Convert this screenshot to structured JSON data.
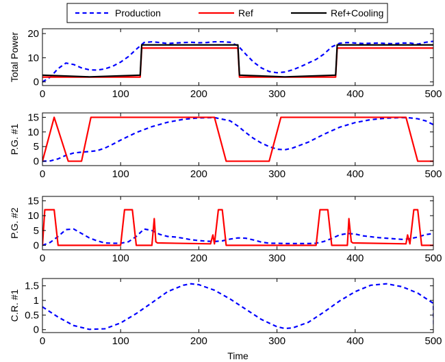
{
  "chart_data": {
    "type": "line",
    "title": "",
    "xlabel": "Time",
    "xlim": [
      0,
      500
    ],
    "xticks": [
      0,
      100,
      200,
      300,
      400,
      500
    ],
    "grid": false,
    "legend": {
      "placement": "top-center",
      "entries": [
        {
          "name": "Production",
          "color": "#0000ff",
          "style": "dashed"
        },
        {
          "name": "Ref",
          "color": "#ff0000",
          "style": "solid"
        },
        {
          "name": "Ref+Cooling",
          "color": "#000000",
          "style": "solid"
        }
      ]
    },
    "subplots": [
      {
        "id": "total-power",
        "ylabel": "Total Power",
        "ylim": [
          -1.5,
          22
        ],
        "yticks": [
          0,
          10,
          20
        ],
        "series": [
          {
            "name": "Production",
            "color": "#0000ff",
            "style": "dashed",
            "x": [
              0,
              10,
              20,
              30,
              40,
              50,
              60,
              70,
              80,
              90,
              100,
              110,
              120,
              130,
              140,
              150,
              160,
              170,
              180,
              190,
              200,
              210,
              220,
              230,
              240,
              250,
              260,
              270,
              280,
              290,
              300,
              310,
              320,
              330,
              340,
              350,
              360,
              370,
              380,
              390,
              400,
              410,
              420,
              430,
              440,
              450,
              460,
              470,
              480,
              490,
              500
            ],
            "y": [
              0,
              2,
              5.5,
              7.8,
              7.2,
              5.8,
              5.0,
              4.9,
              5.4,
              6.5,
              8.2,
              10.5,
              13.5,
              16.3,
              16.6,
              16.3,
              15.9,
              16.1,
              16.3,
              16.4,
              16.2,
              16.3,
              16.6,
              16.6,
              16.4,
              15.0,
              11.5,
              8.2,
              5.8,
              4.3,
              3.8,
              4.1,
              5.0,
              6.3,
              7.8,
              9.3,
              11.5,
              14.5,
              16.0,
              16.3,
              16.1,
              15.9,
              16.0,
              16.1,
              15.9,
              15.8,
              16.1,
              16.1,
              15.6,
              16.4,
              16.8
            ]
          },
          {
            "name": "Ref",
            "color": "#ff0000",
            "style": "solid",
            "x": [
              0,
              125,
              127,
              250,
              252,
              375,
              377,
              500
            ],
            "y": [
              2.0,
              2.0,
              14.0,
              14.0,
              2.0,
              2.0,
              14.0,
              14.0
            ]
          },
          {
            "name": "Ref+Cooling",
            "color": "#000000",
            "style": "solid",
            "x": [
              0,
              60,
              125,
              127,
              250,
              252,
              310,
              375,
              377,
              500
            ],
            "y": [
              2.8,
              2.1,
              2.8,
              15.3,
              15.3,
              2.8,
              2.1,
              2.8,
              15.3,
              15.3
            ]
          }
        ]
      },
      {
        "id": "pg1",
        "ylabel": "P.G. #1",
        "ylim": [
          -1.5,
          16.5
        ],
        "yticks": [
          0,
          5,
          10,
          15
        ],
        "series": [
          {
            "name": "Production",
            "color": "#0000ff",
            "style": "dashed",
            "x": [
              0,
              10,
              20,
              30,
              40,
              50,
              60,
              70,
              80,
              90,
              100,
              120,
              140,
              160,
              180,
              200,
              220,
              240,
              250,
              260,
              270,
              280,
              290,
              300,
              310,
              320,
              340,
              360,
              380,
              400,
              420,
              440,
              460,
              470,
              480,
              490,
              500
            ],
            "y": [
              0,
              0.1,
              0.8,
              2.0,
              2.8,
              3.1,
              3.3,
              3.6,
              4.5,
              5.8,
              7.2,
              9.8,
              11.8,
              13.3,
              14.3,
              14.8,
              14.9,
              13.8,
              12.0,
              9.8,
              7.8,
              6.2,
              5.0,
              4.1,
              3.9,
              4.5,
              6.5,
              9.2,
              11.6,
              13.2,
              14.2,
              14.7,
              14.9,
              14.8,
              14.5,
              13.8,
              12.5
            ]
          },
          {
            "name": "Ref",
            "color": "#ff0000",
            "style": "solid",
            "x": [
              0,
              15,
              33,
              50,
              62,
              220,
              235,
              290,
              305,
              465,
              480,
              500
            ],
            "y": [
              0,
              15,
              0,
              0,
              15,
              15,
              0,
              0,
              15,
              15,
              0,
              0
            ]
          }
        ]
      },
      {
        "id": "pg2",
        "ylabel": "P.G. #2",
        "ylim": [
          -1.5,
          16.5
        ],
        "yticks": [
          0,
          5,
          10,
          15
        ],
        "series": [
          {
            "name": "Production",
            "color": "#0000ff",
            "style": "dashed",
            "x": [
              0,
              10,
              20,
              30,
              40,
              50,
              60,
              70,
              80,
              90,
              100,
              110,
              120,
              130,
              140,
              150,
              160,
              170,
              180,
              190,
              200,
              210,
              220,
              230,
              240,
              250,
              260,
              270,
              280,
              290,
              300,
              310,
              320,
              330,
              340,
              350,
              360,
              370,
              380,
              390,
              400,
              410,
              420,
              430,
              440,
              450,
              460,
              470,
              480,
              490,
              500
            ],
            "y": [
              0,
              1.0,
              3.0,
              5.3,
              5.5,
              4.0,
              2.5,
              1.5,
              0.8,
              0.7,
              0.7,
              1.2,
              3.0,
              5.5,
              5.0,
              3.7,
              3.0,
              2.8,
              2.4,
              1.9,
              1.6,
              1.4,
              1.3,
              1.5,
              2.1,
              2.5,
              2.4,
              1.8,
              1.1,
              0.7,
              0.7,
              0.6,
              0.6,
              0.6,
              0.6,
              0.7,
              1.3,
              2.3,
              3.5,
              4.0,
              3.8,
              3.2,
              2.9,
              2.6,
              2.4,
              2.2,
              2.0,
              2.2,
              2.8,
              3.6,
              4.0
            ]
          },
          {
            "name": "Ref",
            "color": "#ff0000",
            "style": "solid",
            "x": [
              0,
              3,
              15,
              20,
              25,
              100,
              105,
              115,
              120,
              140,
              143,
              145,
              147,
              215,
              218,
              220,
              225,
              230,
              235,
              350,
              355,
              365,
              370,
              390,
              392,
              395,
              397,
              465,
              467,
              470,
              475,
              480,
              485,
              500
            ],
            "y": [
              0,
              12,
              12,
              0,
              0,
              0,
              12,
              12,
              0,
              0,
              9,
              1.2,
              0.8,
              0.5,
              3.5,
              0.5,
              12,
              12,
              0,
              0,
              12,
              12,
              0,
              0,
              9,
              1.2,
              0.8,
              0.5,
              3.5,
              0.5,
              12,
              12,
              0,
              0
            ]
          }
        ]
      },
      {
        "id": "cr1",
        "ylabel": "C.R. #1",
        "ylim": [
          -0.1,
          1.75
        ],
        "yticks": [
          0,
          0.5,
          1,
          1.5
        ],
        "series": [
          {
            "name": "Production",
            "color": "#0000ff",
            "style": "dashed",
            "x": [
              0,
              20,
              40,
              60,
              80,
              100,
              120,
              140,
              160,
              180,
              190,
              200,
              220,
              240,
              260,
              280,
              300,
              310,
              320,
              340,
              360,
              380,
              400,
              420,
              440,
              460,
              480,
              500,
              500.5
            ],
            "y": [
              0.78,
              0.43,
              0.14,
              0.01,
              0.03,
              0.23,
              0.55,
              0.92,
              1.3,
              1.52,
              1.57,
              1.54,
              1.35,
              1.05,
              0.7,
              0.35,
              0.1,
              0.04,
              0.06,
              0.25,
              0.6,
              0.98,
              1.3,
              1.52,
              1.57,
              1.47,
              1.25,
              0.9,
              0.05
            ]
          }
        ]
      }
    ]
  }
}
